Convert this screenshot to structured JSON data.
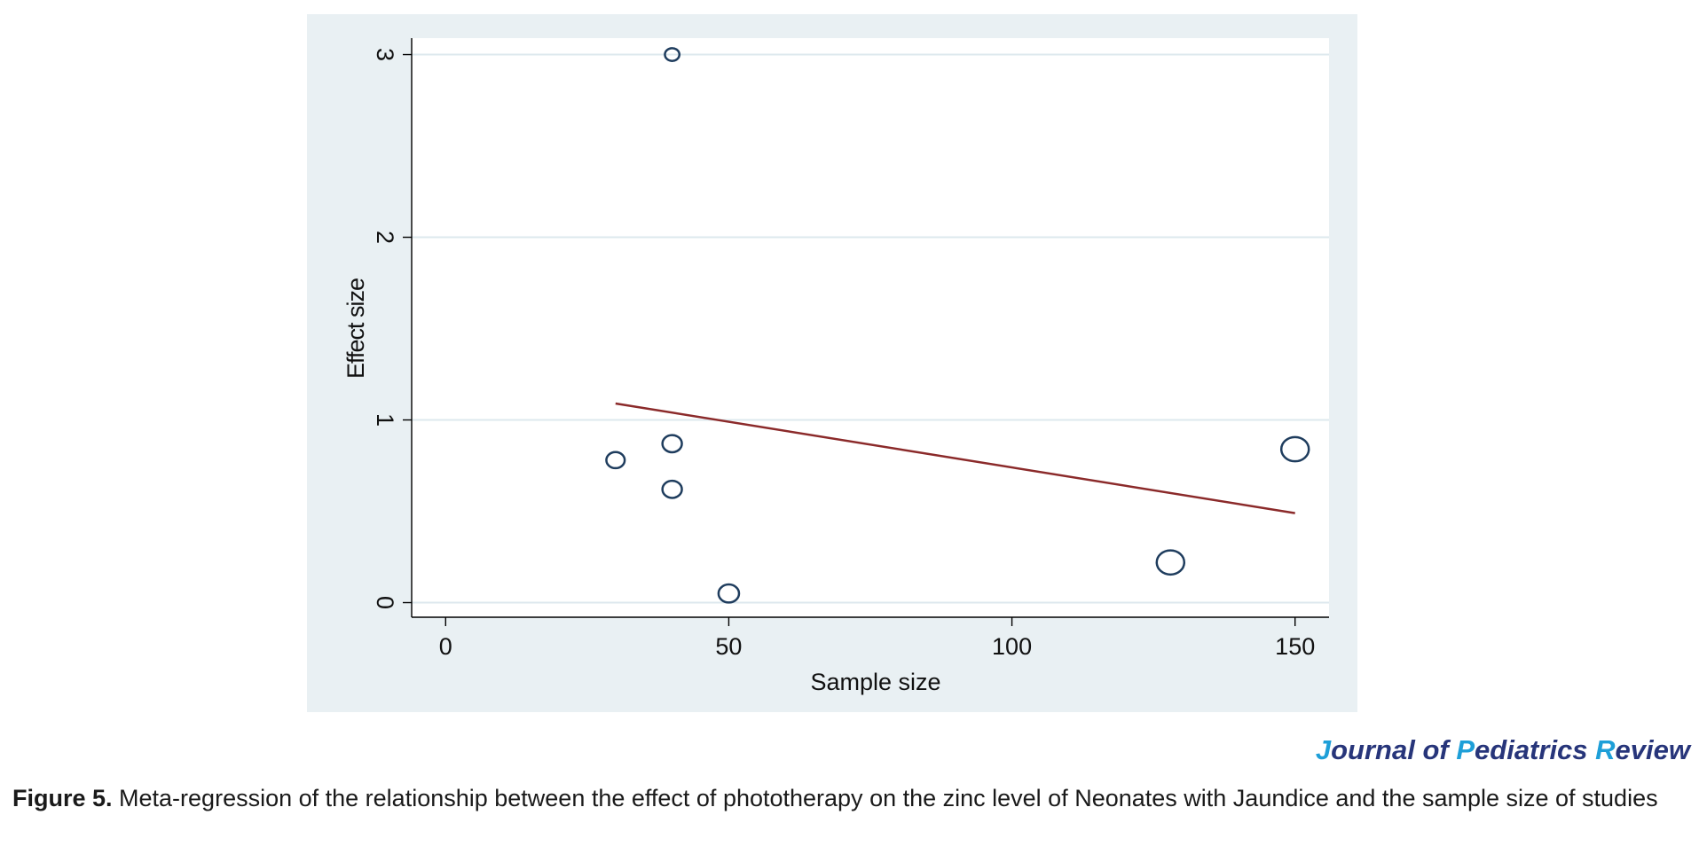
{
  "chart_data": {
    "type": "scatter",
    "title": "",
    "xlabel": "Sample size",
    "ylabel": "Effect size",
    "xlim": [
      -6,
      156
    ],
    "ylim": [
      -0.08,
      3.09
    ],
    "xticks": [
      0,
      50,
      100,
      150
    ],
    "yticks": [
      0,
      1,
      2,
      3
    ],
    "grid": "horizontal",
    "legend": "none",
    "points": [
      {
        "x": 40,
        "y": 3.0,
        "weight": 0.5
      },
      {
        "x": 30,
        "y": 0.78,
        "weight": 0.8
      },
      {
        "x": 40,
        "y": 0.87,
        "weight": 0.9
      },
      {
        "x": 40,
        "y": 0.62,
        "weight": 0.9
      },
      {
        "x": 50,
        "y": 0.05,
        "weight": 1.0
      },
      {
        "x": 128,
        "y": 0.22,
        "weight": 1.8
      },
      {
        "x": 150,
        "y": 0.84,
        "weight": 1.8
      }
    ],
    "fit_line": {
      "x": [
        30,
        150
      ],
      "y": [
        1.09,
        0.49
      ]
    },
    "colors": {
      "marker": "#1f3d5e",
      "fit_line": "#8b2a2a",
      "panel_bg": "#e9f0f3",
      "plot_bg": "#ffffff",
      "grid": "#dde8ee",
      "axis": "#000000"
    }
  },
  "journal": {
    "j": "J",
    "ournal": "ournal of ",
    "p": "P",
    "ediatrics": "ediatrics ",
    "r": "R",
    "eview": "eview"
  },
  "caption": {
    "label": "Figure 5.",
    "text": " Meta-regression of the relationship between the effect of phototherapy on the zinc level of Neonates with Jaundice and the sample size of studies"
  }
}
